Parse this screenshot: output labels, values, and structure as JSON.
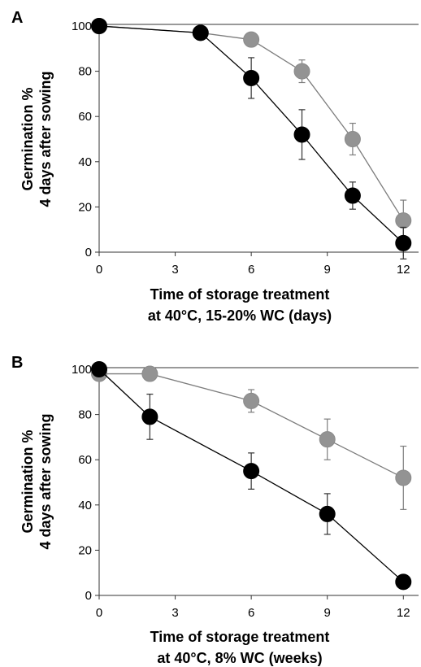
{
  "chart_data": [
    {
      "type": "line",
      "panel_label": "A",
      "ylabel_lines": [
        "Germination %",
        "4 days after sowing"
      ],
      "xlabel_lines": [
        "Time of storage treatment",
        "at 40°C, 15-20% WC (days)"
      ],
      "xlim": [
        0,
        12.6
      ],
      "ylim": [
        0,
        100
      ],
      "xticks": [
        0,
        3,
        6,
        9,
        12
      ],
      "yticks": [
        0,
        20,
        40,
        60,
        80,
        100
      ],
      "series": [
        {
          "color": "#000000",
          "x": [
            0,
            4,
            6,
            8,
            10,
            12
          ],
          "y": [
            100,
            97,
            77,
            52,
            25,
            4
          ],
          "err": [
            0,
            0,
            9,
            11,
            6,
            7
          ]
        },
        {
          "color": "#939393",
          "x": [
            0,
            4,
            6,
            8,
            10,
            12
          ],
          "y": [
            100,
            97,
            94,
            80,
            50,
            14
          ],
          "err": [
            0,
            0,
            0,
            5,
            7,
            9
          ]
        }
      ]
    },
    {
      "type": "line",
      "panel_label": "B",
      "ylabel_lines": [
        "Germination %",
        "4 days after sowing"
      ],
      "xlabel_lines": [
        "Time of storage treatment",
        "at 40°C, 8% WC (weeks)"
      ],
      "xlim": [
        0,
        12.6
      ],
      "ylim": [
        0,
        100
      ],
      "xticks": [
        0,
        3,
        6,
        9,
        12
      ],
      "yticks": [
        0,
        20,
        40,
        60,
        80,
        100
      ],
      "series": [
        {
          "color": "#000000",
          "x": [
            0,
            2,
            6,
            9,
            12
          ],
          "y": [
            100,
            79,
            55,
            36,
            6
          ],
          "err": [
            0,
            10,
            8,
            9,
            3
          ]
        },
        {
          "color": "#939393",
          "x": [
            0,
            2,
            6,
            9,
            12
          ],
          "y": [
            98,
            98,
            86,
            69,
            52
          ],
          "err": [
            0,
            0,
            5,
            9,
            14
          ]
        }
      ]
    }
  ]
}
